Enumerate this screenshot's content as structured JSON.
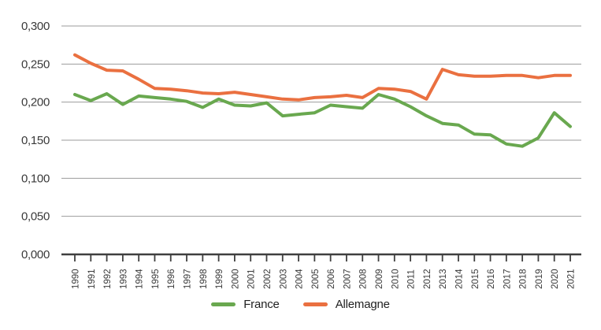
{
  "chart_data": {
    "type": "line",
    "title": "",
    "xlabel": "",
    "ylabel": "",
    "x": [
      1990,
      1991,
      1992,
      1993,
      1994,
      1995,
      1996,
      1997,
      1998,
      1999,
      2000,
      2001,
      2002,
      2003,
      2004,
      2005,
      2006,
      2007,
      2008,
      2009,
      2010,
      2011,
      2012,
      2013,
      2014,
      2015,
      2016,
      2017,
      2018,
      2019,
      2020,
      2021
    ],
    "series": [
      {
        "name": "France",
        "color": "#69A84F",
        "values": [
          0.21,
          0.202,
          0.211,
          0.197,
          0.208,
          0.206,
          0.204,
          0.201,
          0.193,
          0.204,
          0.196,
          0.195,
          0.199,
          0.182,
          0.184,
          0.186,
          0.196,
          0.194,
          0.192,
          0.21,
          0.204,
          0.194,
          0.182,
          0.172,
          0.17,
          0.158,
          0.157,
          0.145,
          0.142,
          0.153,
          0.186,
          0.168
        ]
      },
      {
        "name": "Allemagne",
        "color": "#EA7040",
        "values": [
          0.262,
          0.251,
          0.242,
          0.241,
          0.23,
          0.218,
          0.217,
          0.215,
          0.212,
          0.211,
          0.213,
          0.21,
          0.207,
          0.204,
          0.203,
          0.206,
          0.207,
          0.209,
          0.206,
          0.218,
          0.217,
          0.214,
          0.204,
          0.243,
          0.236,
          0.234,
          0.234,
          0.235,
          0.235,
          0.232,
          0.235,
          0.235
        ]
      }
    ],
    "ylim": [
      0,
      0.3
    ],
    "y_ticks": {
      "values": [
        0,
        0.05,
        0.1,
        0.15,
        0.2,
        0.25,
        0.3
      ],
      "labels": [
        "0,000",
        "0,050",
        "0,100",
        "0,150",
        "0,200",
        "0,250",
        "0,300"
      ]
    },
    "grid": "horizontal",
    "legend_position": "bottom",
    "colors": {
      "gridline": "#9B9B9B",
      "axis": "#3F3F3F",
      "tick_label": "#3A3A3A"
    }
  }
}
